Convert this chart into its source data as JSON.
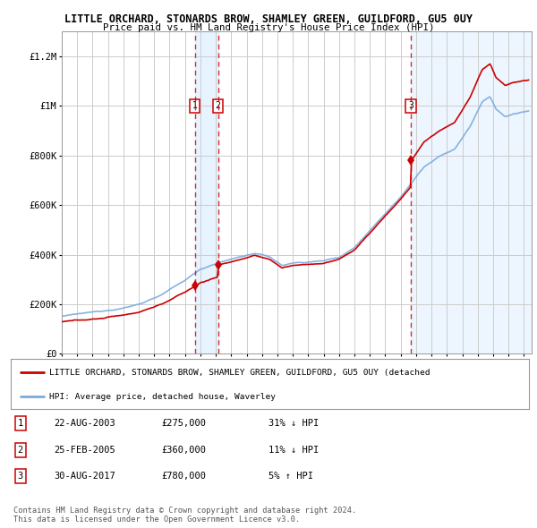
{
  "title": "LITTLE ORCHARD, STONARDS BROW, SHAMLEY GREEN, GUILDFORD, GU5 0UY",
  "subtitle": "Price paid vs. HM Land Registry's House Price Index (HPI)",
  "xlim_start": 1995.0,
  "xlim_end": 2025.5,
  "ylim": [
    0,
    1300000
  ],
  "yticks": [
    0,
    200000,
    400000,
    600000,
    800000,
    1000000,
    1200000
  ],
  "ytick_labels": [
    "£0",
    "£200K",
    "£400K",
    "£600K",
    "£800K",
    "£1M",
    "£1.2M"
  ],
  "sale_dates": [
    2003.645,
    2005.145,
    2017.66
  ],
  "sale_prices": [
    275000,
    360000,
    780000
  ],
  "sale_labels": [
    "1",
    "2",
    "3"
  ],
  "legend_red_label": "LITTLE ORCHARD, STONARDS BROW, SHAMLEY GREEN, GUILDFORD, GU5 0UY (detached",
  "legend_blue_label": "HPI: Average price, detached house, Waverley",
  "table_rows": [
    {
      "num": "1",
      "date": "22-AUG-2003",
      "price": "£275,000",
      "hpi": "31% ↓ HPI"
    },
    {
      "num": "2",
      "date": "25-FEB-2005",
      "price": "£360,000",
      "hpi": "11% ↓ HPI"
    },
    {
      "num": "3",
      "date": "30-AUG-2017",
      "price": "£780,000",
      "hpi": "5% ↑ HPI"
    }
  ],
  "footnote": "Contains HM Land Registry data © Crown copyright and database right 2024.\nThis data is licensed under the Open Government Licence v3.0.",
  "hpi_color": "#7aaadd",
  "red_color": "#cc0000",
  "shade_color": "#ddeeff",
  "grid_color": "#cccccc"
}
